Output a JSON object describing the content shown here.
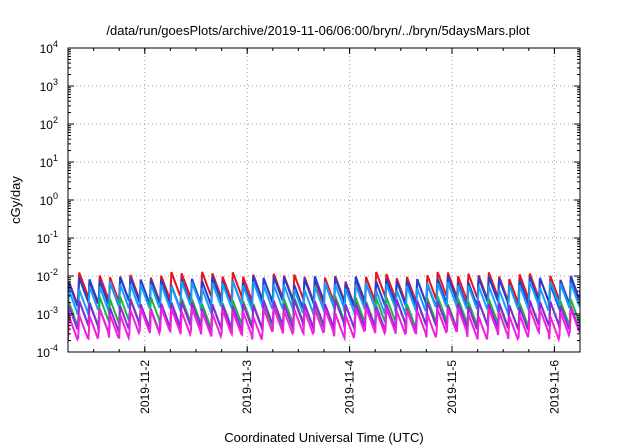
{
  "chart_data": {
    "type": "line",
    "title": "/data/run/goesPlots/archive/2019-11-06/06:00/bryn/../bryn/5daysMars.plot",
    "xlabel": "Coordinated Universal Time (UTC)",
    "ylabel": "cGy/day",
    "y_scale": "log",
    "ylim": [
      0.0001,
      10000
    ],
    "y_ticks": [
      {
        "base": "10",
        "exp": "-4"
      },
      {
        "base": "10",
        "exp": "-3"
      },
      {
        "base": "10",
        "exp": "-2"
      },
      {
        "base": "10",
        "exp": "-1"
      },
      {
        "base": "10",
        "exp": "0"
      },
      {
        "base": "10",
        "exp": "1"
      },
      {
        "base": "10",
        "exp": "2"
      },
      {
        "base": "10",
        "exp": "3"
      },
      {
        "base": "10",
        "exp": "4"
      }
    ],
    "xlim": [
      "2019-11-01T06:00",
      "2019-11-06T06:00"
    ],
    "x_ticks": [
      "2019-11-2",
      "2019-11-3",
      "2019-11-4",
      "2019-11-5",
      "2019-11-6"
    ],
    "grid": true,
    "legend": "none",
    "series_pattern": {
      "cycles_per_day": 10,
      "amplitude_ratio": 4,
      "total_cycles": 50
    },
    "series": [
      {
        "color": "#e8141c",
        "peak": 0.0095
      },
      {
        "color": "#1f3fd8",
        "peak": 0.0075
      },
      {
        "color": "#1a9ef5",
        "peak": 0.0055
      },
      {
        "color": "#22b24a",
        "peak": 0.0022
      },
      {
        "color": "#8c28d8",
        "peak": 0.0018
      },
      {
        "color": "#f020e0",
        "peak": 0.0011
      }
    ],
    "colors": {
      "frame": "#000000",
      "grid": "#a0a0a0",
      "background": "#ffffff"
    }
  }
}
